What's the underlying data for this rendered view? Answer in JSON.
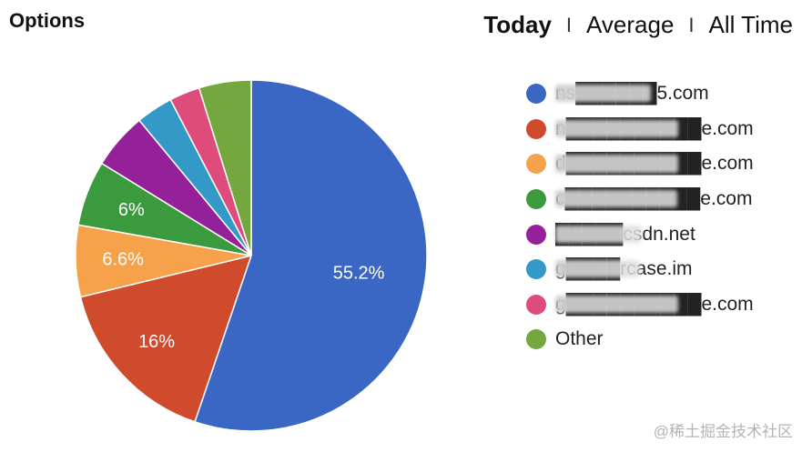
{
  "header": {
    "title": "Options",
    "ranges": [
      {
        "label": "Today",
        "active": true
      },
      {
        "label": "Average",
        "active": false
      },
      {
        "label": "All Time",
        "active": false
      }
    ],
    "separator": "I"
  },
  "chart_data": {
    "type": "pie",
    "title": "",
    "slices": [
      {
        "label": "ns██████5.com",
        "value": 55.2,
        "color": "#3a66c4",
        "obscured": true
      },
      {
        "label": "n██████████e.com",
        "value": 16.0,
        "color": "#d04a2c",
        "obscured": true
      },
      {
        "label": "d██████████e.com",
        "value": 6.6,
        "color": "#f6a24b",
        "obscured": true
      },
      {
        "label": "c██████████e.com",
        "value": 6.0,
        "color": "#3b9a3d",
        "obscured": true
      },
      {
        "label": "█████csdn.net",
        "value": 5.2,
        "color": "#95219a",
        "obscured": true
      },
      {
        "label": "g████rcase.im",
        "value": 3.4,
        "color": "#3399c7",
        "obscured": true
      },
      {
        "label": "g██████████e.com",
        "value": 2.8,
        "color": "#dd4c7a",
        "obscured": true
      },
      {
        "label": "Other",
        "value": 4.8,
        "color": "#74a83f",
        "obscured": false
      }
    ],
    "slice_labels": [
      "55.2%",
      "16%",
      "6.6%",
      "6%",
      "",
      "",
      "",
      ""
    ],
    "legend_position": "right"
  },
  "watermark": "@稀土掘金技术社区"
}
